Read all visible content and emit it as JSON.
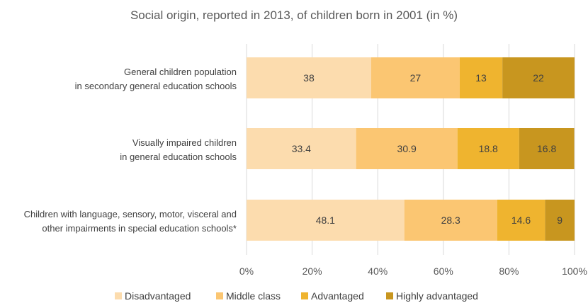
{
  "chart_data": {
    "type": "bar",
    "orientation": "horizontal",
    "stacked": true,
    "title": "Social origin, reported in 2013, of children born in 2001 (in %)",
    "categories": [
      [
        "General children population",
        "in secondary general education schools"
      ],
      [
        "Visually impaired children",
        "in general education schools"
      ],
      [
        "Children with language, sensory, motor, visceral and",
        "other impairments in special education schools*"
      ]
    ],
    "series": [
      {
        "name": "Disadvantaged",
        "color": "#fcdcae",
        "values": [
          38,
          33.4,
          48.1
        ]
      },
      {
        "name": "Middle class",
        "color": "#fbc672",
        "values": [
          27,
          30.9,
          28.3
        ]
      },
      {
        "name": "Advantaged",
        "color": "#efb42f",
        "values": [
          13,
          18.8,
          14.6
        ]
      },
      {
        "name": "Highly advantaged",
        "color": "#c8961f",
        "values": [
          22,
          16.8,
          9
        ]
      }
    ],
    "value_labels": [
      [
        "38",
        "33.4",
        "48.1"
      ],
      [
        "27",
        "30.9",
        "28.3"
      ],
      [
        "13",
        "18.8",
        "14.6"
      ],
      [
        "22",
        "16.8",
        "9"
      ]
    ],
    "xlim": [
      0,
      100
    ],
    "x_ticks": [
      0,
      20,
      40,
      60,
      80,
      100
    ],
    "x_tick_labels": [
      "0%",
      "20%",
      "40%",
      "60%",
      "80%",
      "100%"
    ],
    "grid": true,
    "legend_position": "bottom"
  }
}
